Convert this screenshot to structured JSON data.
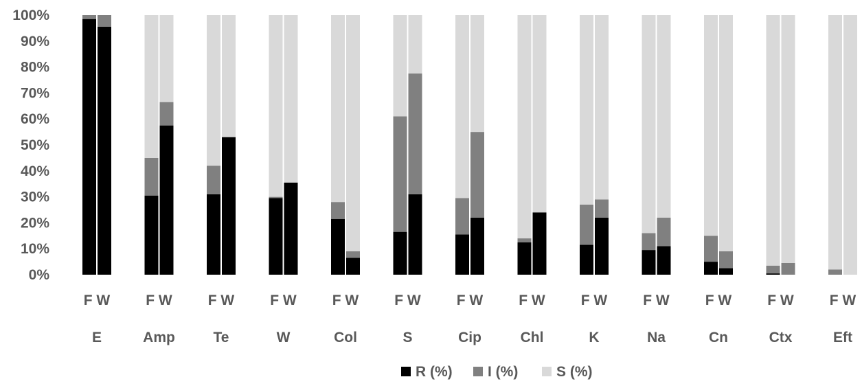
{
  "chart_data": {
    "type": "bar",
    "stacked": true,
    "percent_scale": true,
    "categories": [
      "E",
      "Amp",
      "Te",
      "W",
      "Col",
      "S",
      "Cip",
      "Chl",
      "K",
      "Na",
      "Cn",
      "Ctx",
      "Eft"
    ],
    "subcategories": [
      "F",
      "W"
    ],
    "y_ticks": [
      "0%",
      "10%",
      "20%",
      "30%",
      "40%",
      "50%",
      "60%",
      "70%",
      "80%",
      "90%",
      "100%"
    ],
    "ylim": [
      0,
      100
    ],
    "grid": false,
    "legend_position": "bottom",
    "series": [
      {
        "name": "R (%)",
        "color": "#000000",
        "values": [
          [
            98.5,
            95.5
          ],
          [
            30.5,
            57.5
          ],
          [
            31,
            53
          ],
          [
            29.5,
            35.5
          ],
          [
            21.5,
            6.5
          ],
          [
            16.5,
            31
          ],
          [
            15.5,
            22
          ],
          [
            12.5,
            24
          ],
          [
            11.5,
            22
          ],
          [
            9.5,
            11
          ],
          [
            5,
            2.5
          ],
          [
            0.5,
            0
          ],
          [
            0,
            0
          ]
        ]
      },
      {
        "name": "I (%)",
        "color": "#808080",
        "values": [
          [
            1.5,
            4.5
          ],
          [
            14.5,
            9
          ],
          [
            11,
            0
          ],
          [
            0.5,
            0
          ],
          [
            6.5,
            2.5
          ],
          [
            44.5,
            46.5
          ],
          [
            14,
            33
          ],
          [
            1.5,
            0
          ],
          [
            15.5,
            7
          ],
          [
            6.5,
            11
          ],
          [
            10,
            6.5
          ],
          [
            3,
            4.5
          ],
          [
            2,
            0
          ]
        ]
      },
      {
        "name": "S (%)",
        "color": "#d9d9d9",
        "values": [
          [
            0,
            0
          ],
          [
            55,
            33.5
          ],
          [
            58,
            47
          ],
          [
            70,
            64.5
          ],
          [
            72,
            91
          ],
          [
            39,
            22.5
          ],
          [
            70.5,
            45
          ],
          [
            86,
            76
          ],
          [
            73,
            71
          ],
          [
            84,
            78
          ],
          [
            85,
            91
          ],
          [
            96.5,
            95.5
          ],
          [
            98,
            100
          ]
        ]
      }
    ]
  }
}
